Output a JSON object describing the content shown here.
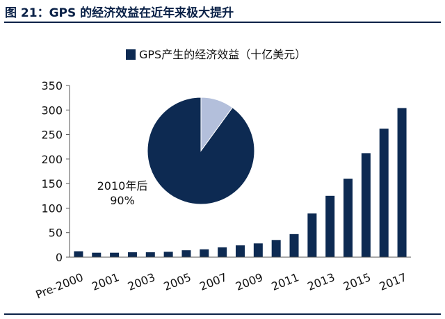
{
  "page": {
    "figure_title": "图 21：GPS 的经济效益在近年来极大提升"
  },
  "chart_data": {
    "type": "bar",
    "title": "",
    "xlabel": "",
    "ylabel": "",
    "ylim": [
      0,
      350
    ],
    "yticks": [
      0,
      50,
      100,
      150,
      200,
      250,
      300,
      350
    ],
    "grid": false,
    "legend": "top-center",
    "categories": [
      "Pre-2000",
      "2000",
      "2001",
      "2002",
      "2003",
      "2004",
      "2005",
      "2006",
      "2007",
      "2008",
      "2009",
      "2010",
      "2011",
      "2012",
      "2013",
      "2014",
      "2015",
      "2016",
      "2017"
    ],
    "tick_labels": [
      "Pre-2000",
      "2001",
      "2003",
      "2005",
      "2007",
      "2009",
      "2011",
      "2013",
      "2015",
      "2017"
    ],
    "series": [
      {
        "name": "GPS产生的经济效益（十亿美元）",
        "color": "#0d2a52",
        "values": [
          12,
          9,
          9,
          10,
          10,
          11,
          14,
          16,
          20,
          24,
          28,
          35,
          47,
          89,
          125,
          160,
          212,
          262,
          304
        ]
      }
    ],
    "inset_pie": {
      "slices": [
        {
          "name": "2010年后",
          "value": 90,
          "color": "#0d2a52"
        },
        {
          "name": "",
          "value": 10,
          "color": "#b3bfdb"
        }
      ],
      "label_text": "2010年后",
      "label_value": "90%"
    }
  }
}
